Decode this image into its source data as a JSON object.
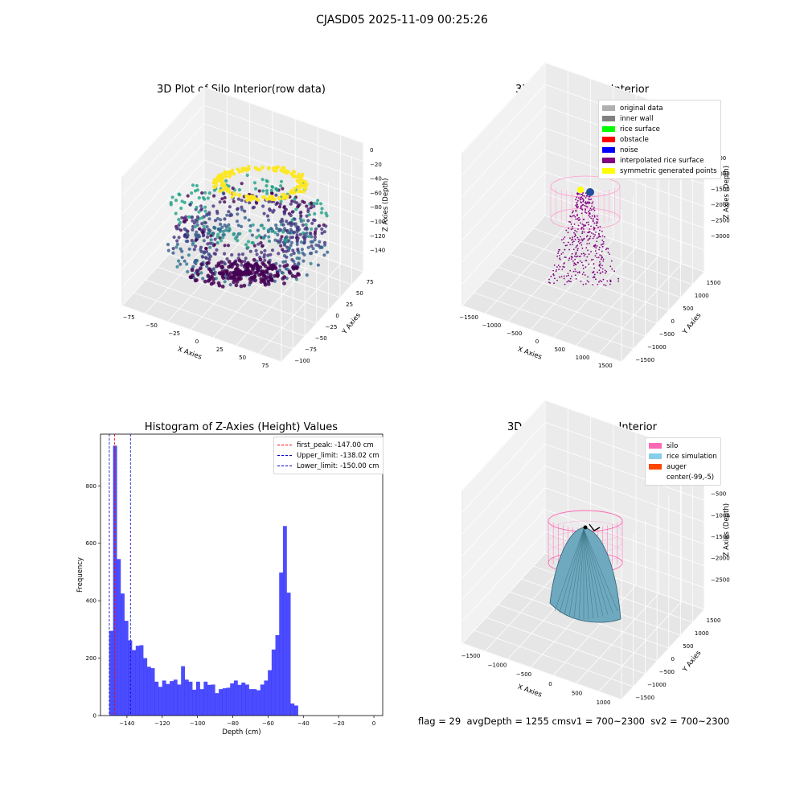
{
  "suptitle": "CJASD05 2025-11-09 00:25:26",
  "panels": {
    "raw": {
      "title": "3D Plot of Silo Interior(row data)",
      "xlabel": "X Axies",
      "ylabel": "Y Axies",
      "zlabel": "Z Axies (Depth)",
      "xticks": [
        "−75",
        "−50",
        "−25",
        "0",
        "25",
        "50",
        "75"
      ],
      "yticks": [
        "75",
        "50",
        "25",
        "0",
        "−25",
        "−50",
        "−75",
        "−100"
      ],
      "zticks": [
        "0",
        "−20",
        "−40",
        "−60",
        "−80",
        "−100",
        "−120",
        "−140"
      ]
    },
    "classify": {
      "title": "3D classify of Silo Interior",
      "xlabel": "X Axies",
      "ylabel": "Y Axies",
      "zlabel": "Z Axies (Depth)",
      "xticks": [
        "−1500",
        "−1000",
        "−500",
        "0",
        "500",
        "1000",
        "1500"
      ],
      "yticks": [
        "1500",
        "1000",
        "500",
        "0",
        "−500",
        "−1000",
        "−1500"
      ],
      "zticks": [
        "0",
        "−500",
        "−1000",
        "−1500",
        "−2000",
        "−2500",
        "−3000"
      ],
      "legend": [
        {
          "label": "original data",
          "color": "#b0b0b0"
        },
        {
          "label": "inner wall",
          "color": "#808080"
        },
        {
          "label": "rice surface",
          "color": "#00ff00"
        },
        {
          "label": "obstacle",
          "color": "#ff0000"
        },
        {
          "label": "noise",
          "color": "#0000ff"
        },
        {
          "label": "interpolated rice surface",
          "color": "#800080"
        },
        {
          "label": "symmetric generated points",
          "color": "#ffff00"
        }
      ]
    },
    "simulation": {
      "title": "3D simulation of Silo Interior",
      "xlabel": "X Axies",
      "ylabel": "Y Axies",
      "zlabel": "Z Axies (Depth)",
      "xticks": [
        "−1500",
        "−1000",
        "−500",
        "0",
        "500",
        "1000"
      ],
      "yticks": [
        "1500",
        "1000",
        "500",
        "0",
        "−500",
        "−1000",
        "−1500"
      ],
      "zticks": [
        "0",
        "−500",
        "−1000",
        "−1500",
        "−2000",
        "−2500"
      ],
      "legend": [
        {
          "label": "silo",
          "color": "#ff69b4"
        },
        {
          "label": "rice simulation",
          "color": "#87ceeb"
        },
        {
          "label": "auger",
          "color": "#ff4500"
        },
        {
          "label": "center(-99,-5)",
          "color": "#ffffff"
        }
      ]
    }
  },
  "chart_data": {
    "type": "bar",
    "title": "Histogram of Z-Axies (Height) Values",
    "xlabel": "Depth (cm)",
    "ylabel": "Frequency",
    "xlim": [
      -155,
      5
    ],
    "ylim": [
      0,
      980
    ],
    "xticks": [
      -140,
      -120,
      -100,
      -80,
      -60,
      -40,
      -20,
      0
    ],
    "yticks": [
      0,
      200,
      400,
      600,
      800
    ],
    "bin_width": 2.14,
    "bin_start": -150,
    "values": [
      295,
      940,
      545,
      425,
      330,
      262,
      228,
      243,
      245,
      200,
      170,
      165,
      118,
      100,
      122,
      110,
      120,
      125,
      108,
      172,
      125,
      118,
      90,
      118,
      92,
      118,
      107,
      108,
      78,
      92,
      95,
      97,
      112,
      122,
      107,
      115,
      108,
      92,
      92,
      88,
      108,
      122,
      158,
      230,
      280,
      498,
      660,
      428,
      42,
      35
    ],
    "color": "#0000ff",
    "vlines": [
      {
        "x": -147.0,
        "label": "first_peak: -147.00 cm",
        "color": "#ff0000"
      },
      {
        "x": -138.02,
        "label": "Upper_limit: -138.02 cm",
        "color": "#0000cc"
      },
      {
        "x": -150.0,
        "label": "Lower_limit: -150.00 cm",
        "color": "#0000cc"
      }
    ],
    "legend_position": "top-right"
  },
  "footer": {
    "text": "flag = 29  avgDepth = 1255 cmsv1 = 700~2300  sv2 = 700~2300"
  }
}
